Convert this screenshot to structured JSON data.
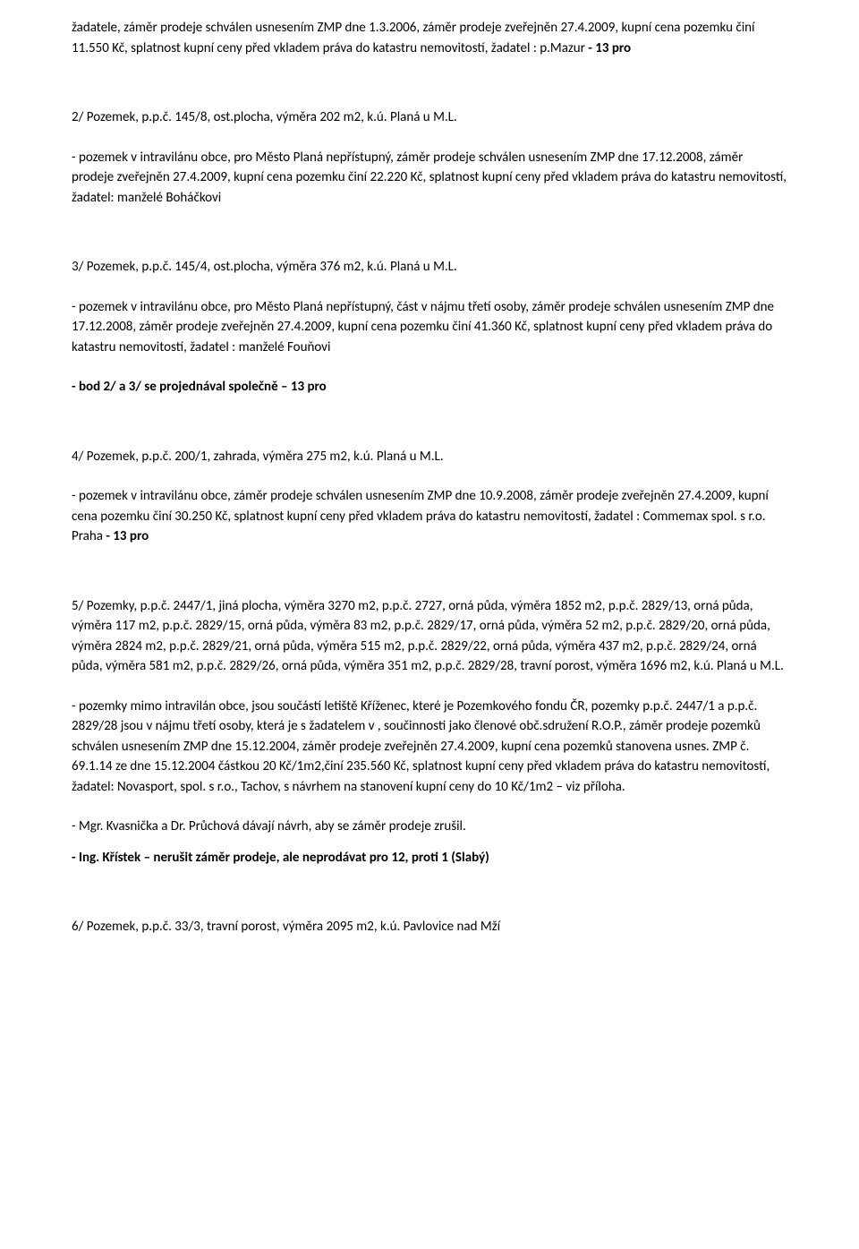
{
  "document": {
    "font_family": "Calibri, Arial, sans-serif",
    "font_size_pt": 11,
    "text_color": "#000000",
    "background_color": "#ffffff",
    "paragraphs": [
      {
        "text": "žadatele, záměr prodeje schválen usnesením ZMP dne 1.3.2006, záměr prodeje zveřejněn 27.4.2009, kupní cena pozemku činí 11.550 Kč, splatnost kupní ceny před vkladem práva do katastru nemovitostí, žadatel : p.Mazur - 13 pro",
        "bold_runs": [
          {
            "start_phrase": "- 13 pro",
            "text": "- 13 pro"
          }
        ],
        "gap": "large"
      },
      {
        "text": "2/ Pozemek, p.p.č. 145/8, ost.plocha, výměra 202 m2, k.ú. Planá u M.L.",
        "gap": "normal"
      },
      {
        "text": "- pozemek v intravilánu obce, pro Město Planá nepřístupný, záměr prodeje schválen usnesením ZMP dne 17.12.2008, záměr prodeje zveřejněn 27.4.2009, kupní cena pozemku činí 22.220 Kč, splatnost kupní ceny před vkladem práva do katastru nemovitostí, žadatel: manželé Boháčkovi",
        "gap": "large"
      },
      {
        "text": "3/ Pozemek, p.p.č. 145/4, ost.plocha, výměra 376 m2, k.ú. Planá u M.L.",
        "gap": "normal"
      },
      {
        "text": "- pozemek v intravilánu obce, pro Město Planá nepřístupný, část v nájmu třetí osoby, záměr prodeje schválen usnesením ZMP dne 17.12.2008, záměr prodeje zveřejněn 27.4.2009, kupní cena pozemku činí 41.360 Kč, splatnost kupní ceny před vkladem práva do katastru nemovitostí, žadatel : manželé Fouňovi",
        "gap": "normal"
      },
      {
        "text": "- bod 2/ a  3/ se projednával společně – 13 pro",
        "bold": true,
        "gap": "large"
      },
      {
        "text": "4/ Pozemek, p.p.č. 200/1, zahrada, výměra 275 m2, k.ú. Planá u M.L.",
        "gap": "normal"
      },
      {
        "text": "- pozemek v intravilánu obce, záměr prodeje schválen usnesením ZMP dne 10.9.2008, záměr prodeje zveřejněn 27.4.2009, kupní cena pozemku činí 30.250 Kč, splatnost kupní ceny před vkladem práva do katastru nemovitostí, žadatel : Commemax spol. s r.o. Praha  - 13 pro",
        "bold_runs": [
          {
            "start_phrase": "- 13 pro",
            "text": "- 13 pro"
          }
        ],
        "gap": "large"
      },
      {
        "text": "5/ Pozemky, p.p.č. 2447/1, jiná plocha, výměra 3270 m2, p.p.č. 2727, orná půda, výměra 1852 m2, p.p.č. 2829/13, orná půda, výměra 117 m2, p.p.č. 2829/15, orná půda, výměra 83 m2, p.p.č. 2829/17, orná půda, výměra 52 m2, p.p.č. 2829/20, orná půda, výměra 2824 m2, p.p.č. 2829/21,  orná půda, výměra 515 m2, p.p.č. 2829/22, orná půda, výměra 437 m2, p.p.č. 2829/24, orná půda, výměra 581 m2, p.p.č. 2829/26, orná půda, výměra 351 m2, p.p.č. 2829/28, travní porost, výměra 1696 m2, k.ú. Planá u M.L.",
        "gap": "normal"
      },
      {
        "text": "- pozemky mimo intravilán obce, jsou součástí letiště Kříženec, které je Pozemkového fondu ČR, pozemky p.p.č. 2447/1 a p.p.č. 2829/28 jsou v nájmu třetí osoby, která je s žadatelem v , součinnosti jako členové obč.sdružení R.O.P., záměr prodeje pozemků schválen usnesením ZMP dne 15.12.2004,  záměr prodeje zveřejněn 27.4.2009, kupní cena pozemků stanovena usnes. ZMP č. 69.1.14 ze dne 15.12.2004 částkou 20 Kč/1m2,činí 235.560 Kč, splatnost kupní ceny před vkladem práva do katastru nemovitostí, žadatel: Novasport, spol. s r.o., Tachov, s návrhem na stanovení kupní ceny do 10 Kč/1m2 – viz příloha.",
        "gap": "normal"
      },
      {
        "text": "- Mgr. Kvasnička a Dr. Průchová dávají návrh, aby se záměr prodeje zrušil.",
        "gap": "tight"
      },
      {
        "text": "- Ing. Křístek – nerušit záměr prodeje, ale neprodávat  pro 12, proti 1 (Slabý)",
        "bold": true,
        "gap": "large"
      },
      {
        "text": "6/ Pozemek, p.p.č. 33/3, travní porost, výměra 2095 m2, k.ú. Pavlovice nad Mží",
        "gap": "none"
      }
    ]
  }
}
